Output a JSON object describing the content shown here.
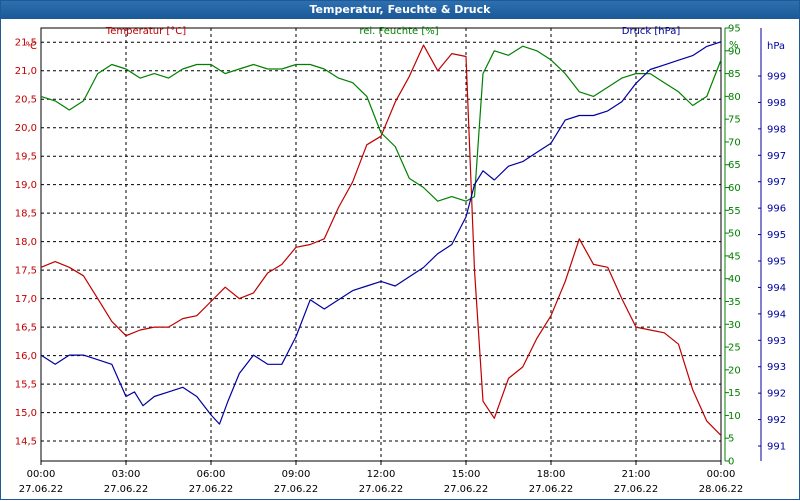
{
  "window": {
    "title": "Temperatur, Feuchte & Druck"
  },
  "colors": {
    "temperature": "#c00000",
    "humidity": "#008000",
    "pressure": "#0000a0",
    "grid": "#000000",
    "title_bg": "#1f5a96"
  },
  "chart_data": {
    "type": "line",
    "title": "Temperatur, Feuchte & Druck",
    "grid": true,
    "legend": "top",
    "x_ticks": [
      {
        "time": "00:00",
        "date": "27.06.22"
      },
      {
        "time": "03:00",
        "date": "27.06.22"
      },
      {
        "time": "06:00",
        "date": "27.06.22"
      },
      {
        "time": "09:00",
        "date": "27.06.22"
      },
      {
        "time": "12:00",
        "date": "27.06.22"
      },
      {
        "time": "15:00",
        "date": "27.06.22"
      },
      {
        "time": "18:00",
        "date": "27.06.22"
      },
      {
        "time": "21:00",
        "date": "27.06.22"
      },
      {
        "time": "00:00",
        "date": "28.06.22"
      }
    ],
    "xlim_hours": [
      0,
      24
    ],
    "axes": {
      "temperature": {
        "label": "Temperatur [°C]",
        "unit": "°C",
        "ylim": [
          14.15,
          21.75
        ],
        "ticks": [
          "14,5",
          "15,0",
          "15,5",
          "16,0",
          "16,5",
          "17,0",
          "17,5",
          "18,0",
          "18,5",
          "19,0",
          "19,5",
          "20,0",
          "20,5",
          "21,0",
          "21,5"
        ]
      },
      "humidity": {
        "label": "rel. Feuchte [%]",
        "unit": "%",
        "ylim": [
          0,
          95
        ],
        "ticks": [
          "0",
          "5",
          "10",
          "15",
          "20",
          "25",
          "30",
          "35",
          "40",
          "45",
          "50",
          "55",
          "60",
          "65",
          "70",
          "75",
          "80",
          "85",
          "90",
          "95"
        ]
      },
      "pressure": {
        "label": "Druck [hPa]",
        "unit": "hPa",
        "ylim": [
          990.5,
          999.9
        ],
        "ticks": [
          "991",
          "992",
          "992",
          "993",
          "993",
          "994",
          "994",
          "995",
          "995",
          "996",
          "997",
          "997",
          "998",
          "998",
          "999"
        ]
      }
    },
    "series": [
      {
        "name": "Temperatur [°C]",
        "axis": "temperature",
        "x": [
          0,
          0.5,
          1,
          1.5,
          2,
          2.5,
          3,
          3.5,
          4,
          4.5,
          5,
          5.5,
          6,
          6.5,
          7,
          7.5,
          8,
          8.5,
          9,
          9.5,
          10,
          10.5,
          11,
          11.5,
          12,
          12.5,
          13,
          13.5,
          14,
          14.5,
          15,
          15.3,
          15.6,
          16,
          16.5,
          17,
          17.5,
          18,
          18.5,
          19,
          19.5,
          20,
          20.5,
          21,
          21.5,
          22,
          22.5,
          23,
          23.5,
          24
        ],
        "values": [
          17.55,
          17.65,
          17.55,
          17.4,
          17.0,
          16.6,
          16.35,
          16.45,
          16.5,
          16.5,
          16.65,
          16.7,
          16.95,
          17.2,
          17.0,
          17.1,
          17.45,
          17.6,
          17.9,
          17.95,
          18.05,
          18.6,
          19.05,
          19.7,
          19.85,
          20.45,
          20.9,
          21.45,
          21.0,
          21.3,
          21.25,
          17.5,
          15.2,
          14.9,
          15.6,
          15.8,
          16.3,
          16.7,
          17.3,
          18.05,
          17.6,
          17.55,
          17.0,
          16.5,
          16.45,
          16.4,
          16.2,
          15.4,
          14.85,
          14.6
        ]
      },
      {
        "name": "rel. Feuchte [%]",
        "axis": "humidity",
        "x": [
          0,
          0.5,
          1,
          1.5,
          2,
          2.5,
          3,
          3.5,
          4,
          4.5,
          5,
          5.5,
          6,
          6.5,
          7,
          7.5,
          8,
          8.5,
          9,
          9.5,
          10,
          10.5,
          11,
          11.5,
          12,
          12.5,
          13,
          13.5,
          14,
          14.5,
          15,
          15.3,
          15.6,
          16,
          16.5,
          17,
          17.5,
          18,
          18.5,
          19,
          19.5,
          20,
          20.5,
          21,
          21.5,
          22,
          22.5,
          23,
          23.5,
          24
        ],
        "values": [
          80,
          79,
          77,
          79,
          85,
          87,
          86,
          84,
          85,
          84,
          86,
          87,
          87,
          85,
          86,
          87,
          86,
          86,
          87,
          87,
          86,
          84,
          83,
          80,
          72,
          69,
          62,
          60,
          57,
          58,
          57,
          58,
          85,
          90,
          89,
          91,
          90,
          88,
          85,
          81,
          80,
          82,
          84,
          85,
          85,
          83,
          81,
          78,
          80,
          88
        ],
        "color": "#008000"
      },
      {
        "name": "Druck [hPa]",
        "axis": "pressure",
        "x": [
          0,
          0.5,
          1,
          1.5,
          2,
          2.5,
          3,
          3.3,
          3.6,
          4,
          4.5,
          5,
          5.5,
          6,
          6.3,
          6.6,
          7,
          7.5,
          8,
          8.5,
          9,
          9.5,
          10,
          10.5,
          11,
          11.5,
          12,
          12.5,
          13,
          13.5,
          14,
          14.5,
          15,
          15.3,
          15.6,
          16,
          16.5,
          17,
          17.5,
          18,
          18.5,
          19,
          19.5,
          20,
          20.5,
          21,
          21.5,
          22,
          22.5,
          23,
          23.5,
          24
        ],
        "values": [
          992.8,
          992.6,
          992.8,
          992.8,
          992.7,
          992.6,
          991.9,
          992.0,
          991.7,
          991.9,
          992.0,
          992.1,
          991.9,
          991.5,
          991.3,
          991.8,
          992.4,
          992.8,
          992.6,
          992.6,
          993.2,
          994.0,
          993.8,
          994.0,
          994.2,
          994.3,
          994.4,
          994.3,
          994.5,
          994.7,
          995.0,
          995.2,
          995.8,
          996.5,
          996.8,
          996.6,
          996.9,
          997.0,
          997.2,
          997.4,
          997.9,
          998.0,
          998.0,
          998.1,
          998.3,
          998.7,
          999.0,
          999.1,
          999.2,
          999.3,
          999.5,
          999.6
        ],
        "color": "#0000a0"
      }
    ]
  }
}
